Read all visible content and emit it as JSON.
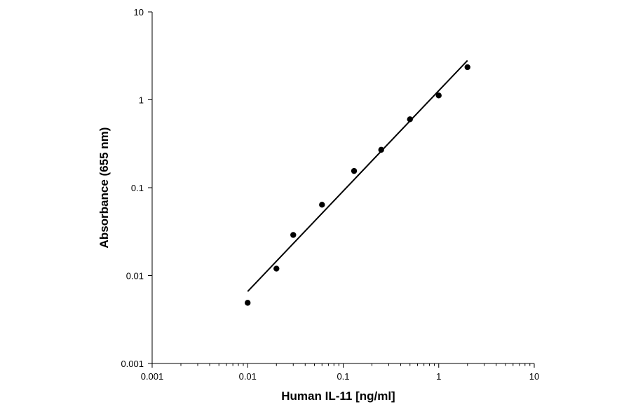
{
  "chart_data": {
    "type": "scatter",
    "title": "",
    "xlabel": "Human IL-11 [ng/ml]",
    "ylabel": "Absorbance (655 nm)",
    "x_scale": "log",
    "y_scale": "log",
    "xlim": [
      0.001,
      10
    ],
    "ylim": [
      0.001,
      10
    ],
    "x_ticks": [
      "0.001",
      "0.01",
      "0.1",
      "1",
      "10"
    ],
    "y_ticks": [
      "0.001",
      "0.01",
      "0.1",
      "1",
      "10"
    ],
    "grid": false,
    "legend": "none",
    "point_color": "#000000",
    "series": [
      {
        "points": [
          {
            "x": 0.01,
            "y": 0.0049
          },
          {
            "x": 0.02,
            "y": 0.012
          },
          {
            "x": 0.03,
            "y": 0.029
          },
          {
            "x": 0.06,
            "y": 0.064
          },
          {
            "x": 0.13,
            "y": 0.155
          },
          {
            "x": 0.25,
            "y": 0.27
          },
          {
            "x": 0.5,
            "y": 0.6
          },
          {
            "x": 1,
            "y": 1.12
          },
          {
            "x": 2,
            "y": 2.35
          }
        ]
      }
    ],
    "trendline": {
      "type": "power",
      "from": {
        "x": 0.01,
        "y": 0.0066
      },
      "to": {
        "x": 2,
        "y": 2.8
      }
    }
  }
}
